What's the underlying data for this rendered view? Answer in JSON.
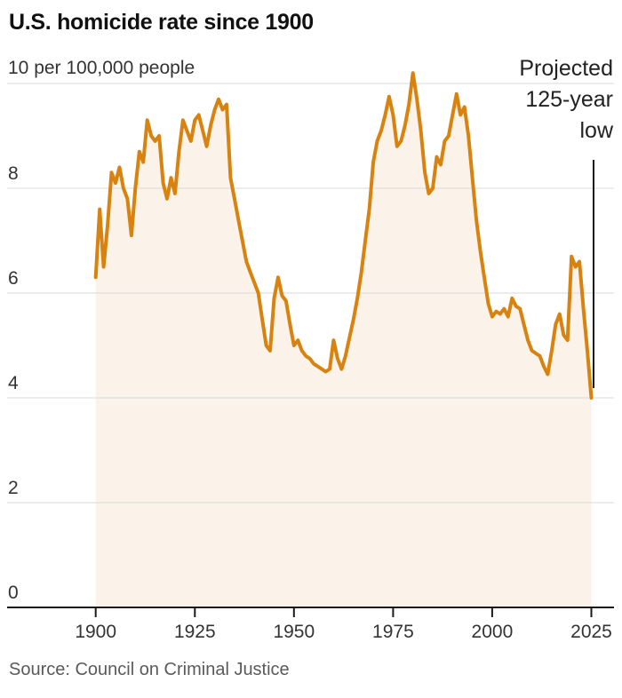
{
  "header": {
    "title": "U.S. homicide rate since 1900"
  },
  "chart": {
    "y_axis": {
      "top_label": "10 per 100,000 people",
      "tick_values": [
        0,
        2,
        4,
        6,
        8
      ],
      "gridline_values": [
        2,
        4,
        6,
        8,
        10
      ]
    },
    "x_axis": {
      "ticks": [
        1900,
        1925,
        1950,
        1975,
        2000,
        2025
      ]
    }
  },
  "annotation": {
    "lines": [
      "Projected",
      "125-year",
      "low"
    ],
    "points_to": {
      "year": 2025,
      "value": 4.0
    }
  },
  "footer": {
    "source": "Source: Council on Criminal Justice"
  },
  "colors": {
    "line": "#d8830f",
    "area_fill": "#fbf2ea",
    "gridline": "#d9d9d9",
    "axis": "#1a1a1a",
    "annotation_line": "#1a1a1a",
    "title_text": "#111111",
    "axis_text": "#333333",
    "source_text": "#5a5a5a"
  },
  "chart_data": {
    "type": "area",
    "title": "U.S. homicide rate since 1900",
    "ylabel": "per 100,000 people",
    "ylim": [
      0,
      10
    ],
    "xlim": [
      1900,
      2025
    ],
    "grid": true,
    "legend": false,
    "annotations": [
      {
        "text": "Projected 125-year low",
        "x": 2025,
        "y": 4.0
      }
    ],
    "x": [
      1900,
      1901,
      1902,
      1903,
      1904,
      1905,
      1906,
      1907,
      1908,
      1909,
      1910,
      1911,
      1912,
      1913,
      1914,
      1915,
      1916,
      1917,
      1918,
      1919,
      1920,
      1921,
      1922,
      1923,
      1924,
      1925,
      1926,
      1927,
      1928,
      1929,
      1930,
      1931,
      1932,
      1933,
      1934,
      1935,
      1936,
      1937,
      1938,
      1939,
      1940,
      1941,
      1942,
      1943,
      1944,
      1945,
      1946,
      1947,
      1948,
      1949,
      1950,
      1951,
      1952,
      1953,
      1954,
      1955,
      1956,
      1957,
      1958,
      1959,
      1960,
      1961,
      1962,
      1963,
      1964,
      1965,
      1966,
      1967,
      1968,
      1969,
      1970,
      1971,
      1972,
      1973,
      1974,
      1975,
      1976,
      1977,
      1978,
      1979,
      1980,
      1981,
      1982,
      1983,
      1984,
      1985,
      1986,
      1987,
      1988,
      1989,
      1990,
      1991,
      1992,
      1993,
      1994,
      1995,
      1996,
      1997,
      1998,
      1999,
      2000,
      2001,
      2002,
      2003,
      2004,
      2005,
      2006,
      2007,
      2008,
      2009,
      2010,
      2011,
      2012,
      2013,
      2014,
      2015,
      2016,
      2017,
      2018,
      2019,
      2020,
      2021,
      2022,
      2023,
      2024,
      2025
    ],
    "series": [
      {
        "name": "U.S. homicide rate per 100,000 people",
        "values": [
          6.3,
          7.6,
          6.5,
          7.3,
          8.3,
          8.1,
          8.4,
          8.0,
          7.8,
          7.1,
          8.0,
          8.7,
          8.5,
          9.3,
          9.0,
          8.9,
          9.0,
          8.1,
          7.8,
          8.2,
          7.9,
          8.7,
          9.3,
          9.1,
          8.9,
          9.3,
          9.4,
          9.1,
          8.8,
          9.2,
          9.5,
          9.7,
          9.5,
          9.6,
          8.2,
          7.8,
          7.4,
          7.0,
          6.6,
          6.4,
          6.2,
          6.0,
          5.5,
          5.0,
          4.9,
          5.9,
          6.3,
          5.95,
          5.85,
          5.4,
          5.0,
          5.1,
          4.9,
          4.8,
          4.75,
          4.65,
          4.6,
          4.55,
          4.5,
          4.55,
          5.1,
          4.75,
          4.55,
          4.8,
          5.15,
          5.5,
          5.9,
          6.4,
          7.0,
          7.6,
          8.5,
          8.9,
          9.1,
          9.4,
          9.75,
          9.4,
          8.8,
          8.9,
          9.2,
          9.6,
          10.2,
          9.7,
          9.1,
          8.3,
          7.9,
          8.0,
          8.6,
          8.45,
          8.9,
          9.0,
          9.4,
          9.8,
          9.4,
          9.55,
          9.0,
          8.2,
          7.4,
          6.8,
          6.3,
          5.8,
          5.55,
          5.65,
          5.6,
          5.7,
          5.55,
          5.9,
          5.75,
          5.7,
          5.4,
          5.1,
          4.9,
          4.85,
          4.8,
          4.6,
          4.45,
          4.9,
          5.4,
          5.6,
          5.2,
          5.1,
          6.7,
          6.5,
          6.6,
          5.7,
          4.9,
          4.0
        ]
      }
    ]
  }
}
